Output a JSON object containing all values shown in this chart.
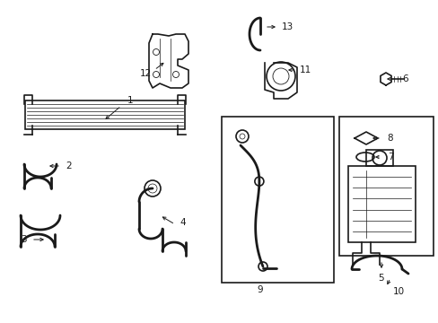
{
  "background": "#ffffff",
  "line_color": "#1a1a1a",
  "lw_thick": 2.0,
  "lw_med": 1.2,
  "lw_thin": 0.7,
  "figw": 4.89,
  "figh": 3.6,
  "dpi": 100
}
